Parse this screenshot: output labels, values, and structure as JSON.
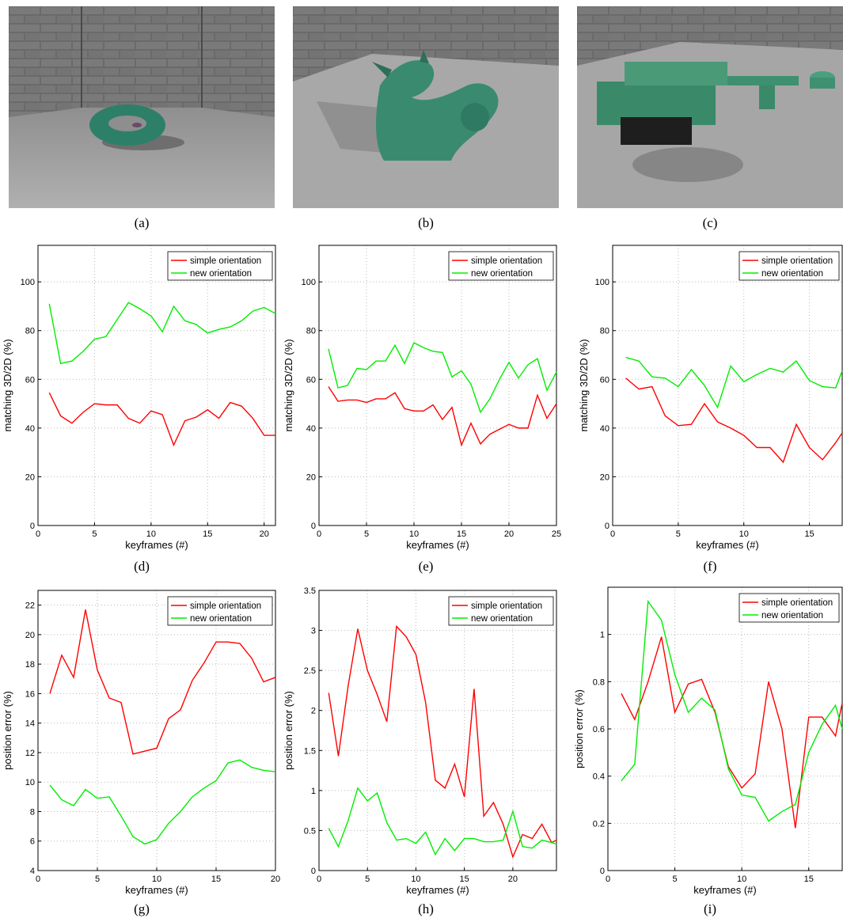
{
  "image_labels": [
    "(a)",
    "(b)",
    "(c)"
  ],
  "image_objects": [
    "torus-icon",
    "dragon-icon",
    "mechanical-part-icon"
  ],
  "chart_labels": [
    "(d)",
    "(e)",
    "(f)",
    "(g)",
    "(h)",
    "(i)"
  ],
  "colors": {
    "simple": "#ff0000",
    "new": "#00ee00",
    "grid": "#b8b8b8",
    "wall": "#6b6b6b",
    "floor": "#a9a9a9",
    "object": "#2e8b6e"
  },
  "chart_data": [
    {
      "type": "line",
      "xlabel": "keyframes (#)",
      "ylabel": "matching 3D/2D (%)",
      "xlim": [
        0,
        21
      ],
      "ylim": [
        0,
        115
      ],
      "xticks": [
        0,
        5,
        10,
        15,
        20
      ],
      "yticks": [
        0,
        20,
        40,
        60,
        80,
        100
      ],
      "ytick_labels": [
        "0",
        "20",
        "40",
        "60",
        "80",
        "100"
      ],
      "grid": true,
      "legend_position": "top-right",
      "series": [
        {
          "name": "simple orientation",
          "color": "#ff0000",
          "x": [
            1,
            2,
            3,
            4,
            5,
            6,
            7,
            8,
            9,
            10,
            11,
            12,
            13,
            14,
            15,
            16,
            17,
            18,
            19,
            20,
            21
          ],
          "y": [
            54.5,
            45,
            42,
            46.5,
            50,
            49.5,
            49.5,
            44,
            42,
            47,
            45.5,
            33,
            43,
            44.5,
            47.5,
            44,
            50.5,
            49,
            44,
            37,
            37
          ]
        },
        {
          "name": "new orientation",
          "color": "#00ee00",
          "x": [
            1,
            2,
            3,
            4,
            5,
            6,
            7,
            8,
            9,
            10,
            11,
            12,
            13,
            14,
            15,
            16,
            17,
            18,
            19,
            20,
            21
          ],
          "y": [
            91,
            66.5,
            67.5,
            71.5,
            76.5,
            77.5,
            84.5,
            91.5,
            89,
            86,
            79.5,
            90,
            84,
            82.5,
            79,
            80.5,
            81.5,
            84,
            88,
            89.5,
            87
          ]
        }
      ]
    },
    {
      "type": "line",
      "xlabel": "keyframes (#)",
      "ylabel": "matching 3D/2D (%)",
      "xlim": [
        0,
        25
      ],
      "ylim": [
        0,
        115
      ],
      "xticks": [
        0,
        5,
        10,
        15,
        20,
        25
      ],
      "yticks": [
        0,
        20,
        40,
        60,
        80,
        100
      ],
      "ytick_labels": [
        "0",
        "20",
        "40",
        "60",
        "80",
        "100"
      ],
      "grid": true,
      "legend_position": "top-right",
      "series": [
        {
          "name": "simple orientation",
          "color": "#ff0000",
          "x": [
            1,
            2,
            3,
            4,
            5,
            6,
            7,
            8,
            9,
            10,
            11,
            12,
            13,
            14,
            15,
            16,
            17,
            18,
            19,
            20,
            21,
            22,
            23,
            24,
            25
          ],
          "y": [
            57,
            51,
            51.5,
            51.5,
            50.5,
            52,
            52,
            54.5,
            48,
            47,
            47,
            49.5,
            43.5,
            48.5,
            33,
            42,
            33.5,
            37.5,
            39.5,
            41.5,
            40,
            40,
            53.5,
            44,
            50
          ]
        },
        {
          "name": "new orientation",
          "color": "#00ee00",
          "x": [
            1,
            2,
            3,
            4,
            5,
            6,
            7,
            8,
            9,
            10,
            11,
            12,
            13,
            14,
            15,
            16,
            17,
            18,
            19,
            20,
            21,
            22,
            23,
            24,
            25
          ],
          "y": [
            72.5,
            56.5,
            57.5,
            64.5,
            64,
            67.5,
            67.5,
            74,
            66.5,
            75,
            73,
            71.5,
            71,
            61,
            63.5,
            58,
            46.5,
            52,
            60,
            67,
            60.5,
            66,
            68.5,
            55.5,
            63
          ]
        }
      ]
    },
    {
      "type": "line",
      "xlabel": "keyframes (#)",
      "ylabel": "matching 3D/2D (%)",
      "xlim": [
        0,
        17.5
      ],
      "ylim": [
        0,
        115
      ],
      "xticks": [
        0,
        5,
        10,
        15
      ],
      "yticks": [
        0,
        20,
        40,
        60,
        80,
        100
      ],
      "ytick_labels": [
        "0",
        "20",
        "40",
        "60",
        "80",
        "100"
      ],
      "grid": true,
      "legend_position": "top-right",
      "series": [
        {
          "name": "simple orientation",
          "color": "#ff0000",
          "x": [
            1,
            2,
            3,
            4,
            5,
            6,
            7,
            8,
            9,
            10,
            11,
            12,
            13,
            14,
            15,
            16,
            17,
            17.5
          ],
          "y": [
            60.5,
            56,
            57,
            45,
            41,
            41.5,
            50,
            42.5,
            40,
            37,
            32,
            32,
            26,
            41.5,
            32,
            27,
            34,
            38
          ]
        },
        {
          "name": "new orientation",
          "color": "#00ee00",
          "x": [
            1,
            2,
            3,
            4,
            5,
            6,
            7,
            8,
            9,
            10,
            11,
            12,
            13,
            14,
            15,
            16,
            17,
            17.5
          ],
          "y": [
            69,
            67.5,
            61,
            60.5,
            57,
            64,
            57.5,
            48.5,
            65.5,
            59,
            62,
            64.5,
            63,
            67.5,
            59.5,
            57,
            56.5,
            63.5
          ]
        }
      ]
    },
    {
      "type": "line",
      "xlabel": "keyframes (#)",
      "ylabel": "position error (%)",
      "xlim": [
        0,
        20
      ],
      "ylim": [
        4,
        23
      ],
      "xticks": [
        0,
        5,
        10,
        15,
        20
      ],
      "yticks": [
        4,
        6,
        8,
        10,
        12,
        14,
        16,
        18,
        20,
        22
      ],
      "ytick_labels": [
        "4",
        "6",
        "8",
        "10",
        "12",
        "14",
        "16",
        "18",
        "20",
        "22"
      ],
      "grid": true,
      "legend_position": "top-right",
      "series": [
        {
          "name": "simple orientation",
          "color": "#ff0000",
          "x": [
            1,
            2,
            3,
            4,
            5,
            6,
            7,
            8,
            9,
            10,
            11,
            12,
            13,
            14,
            15,
            16,
            17,
            18,
            19,
            20
          ],
          "y": [
            16,
            18.6,
            17.1,
            21.7,
            17.6,
            15.7,
            15.4,
            11.9,
            12.1,
            12.3,
            14.3,
            14.9,
            16.9,
            18.1,
            19.5,
            19.5,
            19.4,
            18.4,
            16.8,
            17.1
          ]
        },
        {
          "name": "new orientation",
          "color": "#00ee00",
          "x": [
            1,
            2,
            3,
            4,
            5,
            6,
            7,
            8,
            9,
            10,
            11,
            12,
            13,
            14,
            15,
            16,
            17,
            18,
            19,
            20
          ],
          "y": [
            9.8,
            8.8,
            8.4,
            9.5,
            8.9,
            9,
            7.7,
            6.3,
            5.8,
            6.1,
            7.2,
            8,
            9,
            9.6,
            10.1,
            11.3,
            11.5,
            11,
            10.8,
            10.7
          ]
        }
      ]
    },
    {
      "type": "line",
      "xlabel": "keyframes (#)",
      "ylabel": "position error (%)",
      "xlim": [
        0,
        24.5
      ],
      "ylim": [
        0,
        3.5
      ],
      "xticks": [
        0,
        5,
        10,
        15,
        20
      ],
      "yticks": [
        0,
        0.5,
        1,
        1.5,
        2,
        2.5,
        3,
        3.5
      ],
      "ytick_labels": [
        "0",
        "0.5",
        "1",
        "1.5",
        "2",
        "2.5",
        "3",
        "3.5"
      ],
      "grid": true,
      "legend_position": "top-right",
      "series": [
        {
          "name": "simple orientation",
          "color": "#ff0000",
          "x": [
            1,
            2,
            3,
            4,
            5,
            6,
            7,
            8,
            9,
            10,
            11,
            12,
            13,
            14,
            15,
            16,
            17,
            18,
            19,
            20,
            21,
            22,
            23,
            24,
            24.5
          ],
          "y": [
            2.22,
            1.43,
            2.3,
            3.02,
            2.5,
            2.2,
            1.86,
            3.05,
            2.92,
            2.7,
            2.1,
            1.13,
            1.03,
            1.33,
            0.92,
            2.27,
            0.68,
            0.85,
            0.58,
            0.17,
            0.45,
            0.4,
            0.58,
            0.35,
            0.38
          ]
        },
        {
          "name": "new orientation",
          "color": "#00ee00",
          "x": [
            1,
            2,
            3,
            4,
            5,
            6,
            7,
            8,
            9,
            10,
            11,
            12,
            13,
            14,
            15,
            16,
            17,
            18,
            19,
            20,
            21,
            22,
            23,
            24,
            24.5
          ],
          "y": [
            0.53,
            0.3,
            0.62,
            1.03,
            0.87,
            0.97,
            0.6,
            0.38,
            0.4,
            0.34,
            0.48,
            0.2,
            0.4,
            0.25,
            0.4,
            0.4,
            0.36,
            0.36,
            0.38,
            0.74,
            0.3,
            0.28,
            0.38,
            0.35,
            0.33
          ]
        }
      ]
    },
    {
      "type": "line",
      "xlabel": "keyframes (#)",
      "ylabel": "position error (%)",
      "xlim": [
        0,
        17.5
      ],
      "ylim": [
        0,
        1.2
      ],
      "xticks": [
        0,
        5,
        10,
        15
      ],
      "yticks": [
        0,
        0.2,
        0.4,
        0.6,
        0.8,
        1
      ],
      "ytick_labels": [
        "0",
        "0.2",
        "0.4",
        "0.6",
        "0.8",
        "1"
      ],
      "grid": true,
      "legend_position": "top-right",
      "series": [
        {
          "name": "simple orientation",
          "color": "#ff0000",
          "x": [
            1,
            2,
            3,
            4,
            5,
            6,
            7,
            8,
            9,
            10,
            11,
            12,
            13,
            14,
            15,
            16,
            17,
            17.5
          ],
          "y": [
            0.75,
            0.64,
            0.8,
            0.99,
            0.67,
            0.79,
            0.81,
            0.67,
            0.44,
            0.35,
            0.41,
            0.8,
            0.6,
            0.18,
            0.65,
            0.65,
            0.57,
            0.71
          ]
        },
        {
          "name": "new orientation",
          "color": "#00ee00",
          "x": [
            1,
            2,
            3,
            4,
            5,
            6,
            7,
            8,
            9,
            10,
            11,
            12,
            13,
            14,
            15,
            16,
            17,
            17.5
          ],
          "y": [
            0.38,
            0.45,
            1.14,
            1.06,
            0.83,
            0.67,
            0.73,
            0.68,
            0.43,
            0.32,
            0.31,
            0.21,
            0.25,
            0.28,
            0.5,
            0.62,
            0.7,
            0.6
          ]
        }
      ]
    }
  ]
}
